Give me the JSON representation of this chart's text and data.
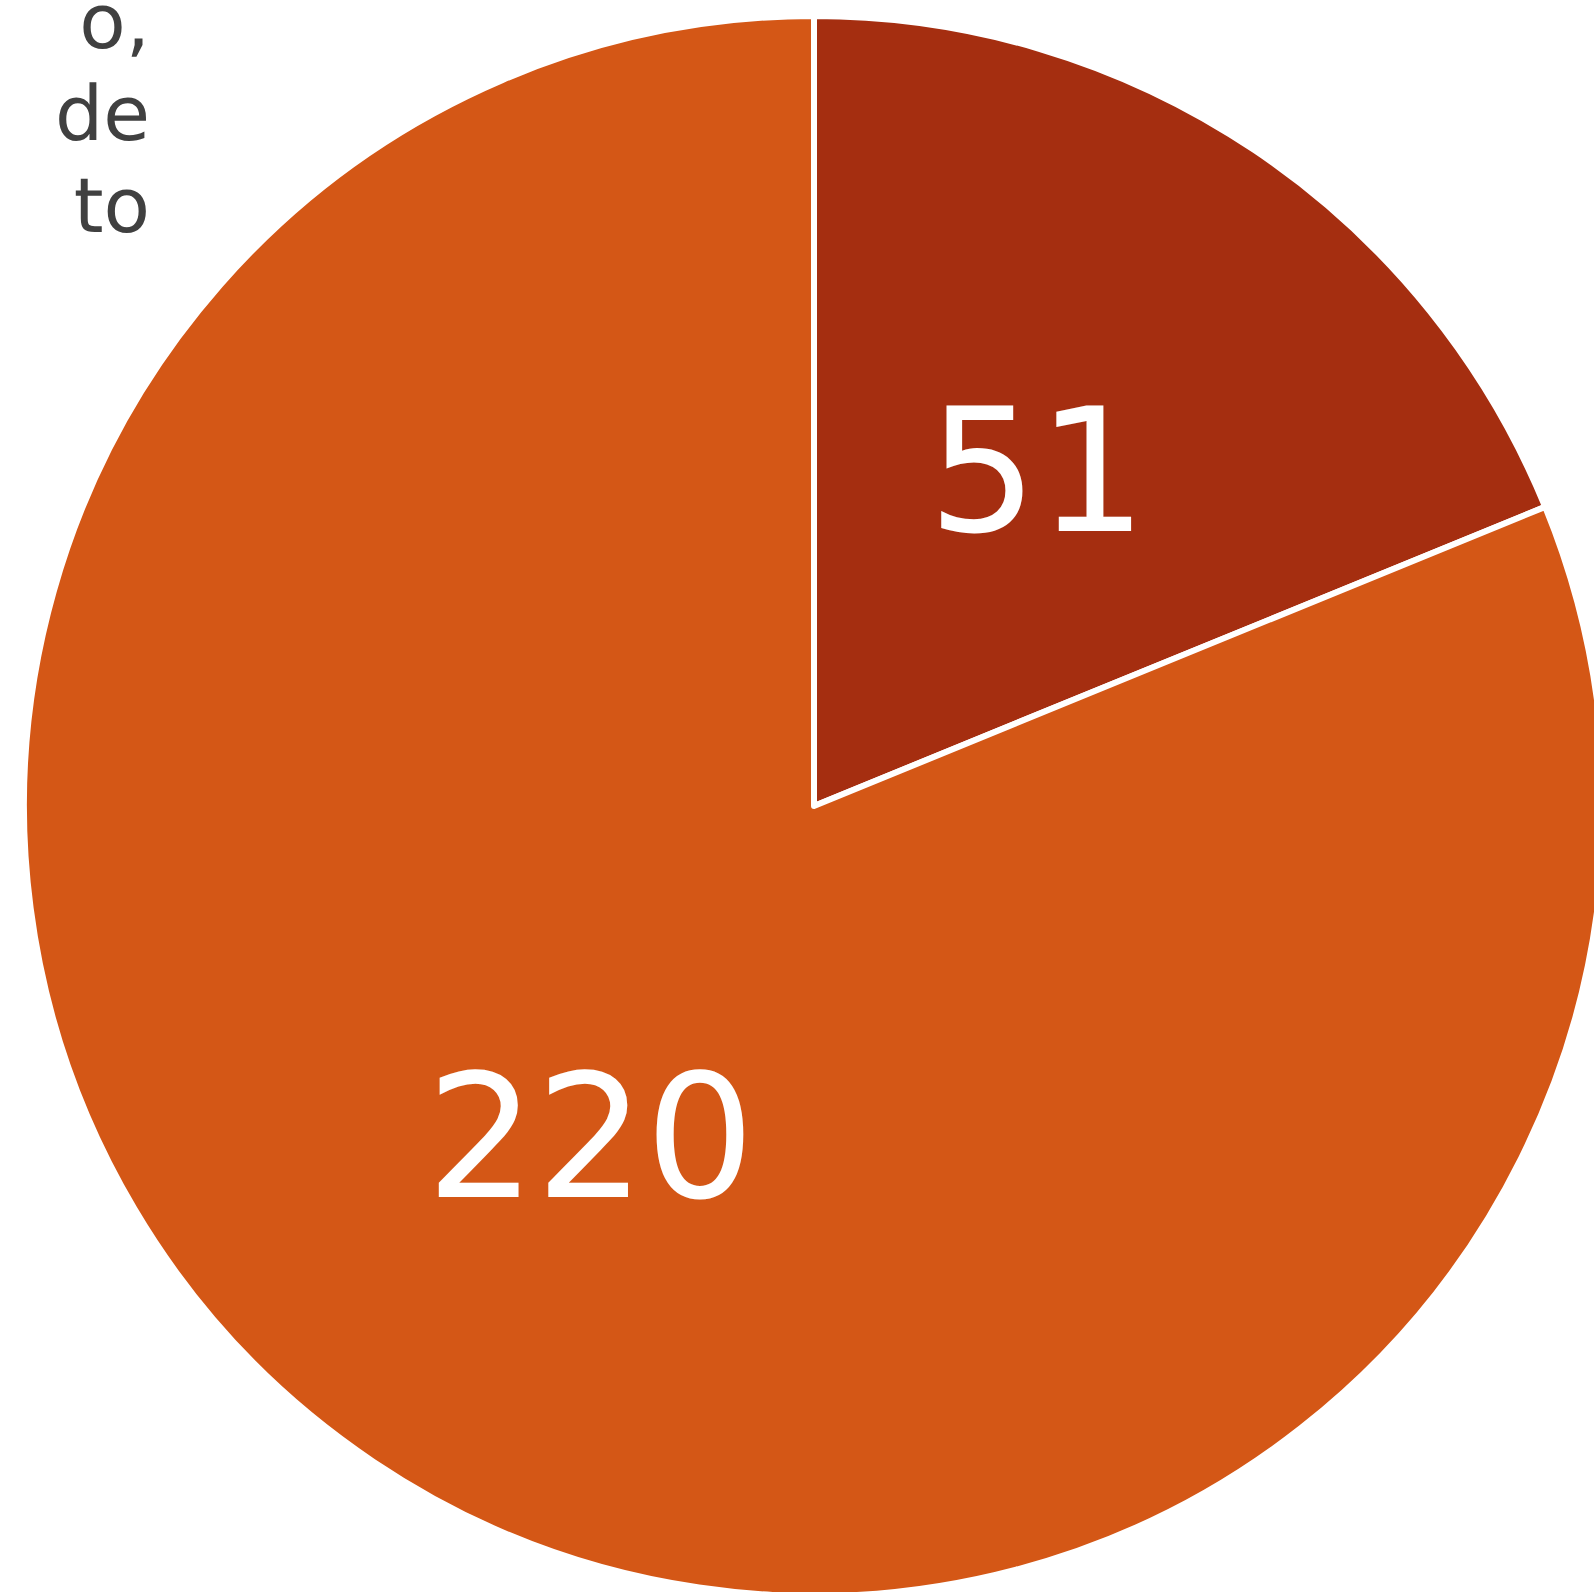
{
  "chart_data": {
    "type": "pie",
    "categories": [
      null,
      null
    ],
    "values": [
      51,
      220
    ],
    "colors": [
      "#a52e10",
      "#d45716"
    ],
    "data_labels": true,
    "annotations": [
      "o,",
      "de",
      "to"
    ]
  }
}
